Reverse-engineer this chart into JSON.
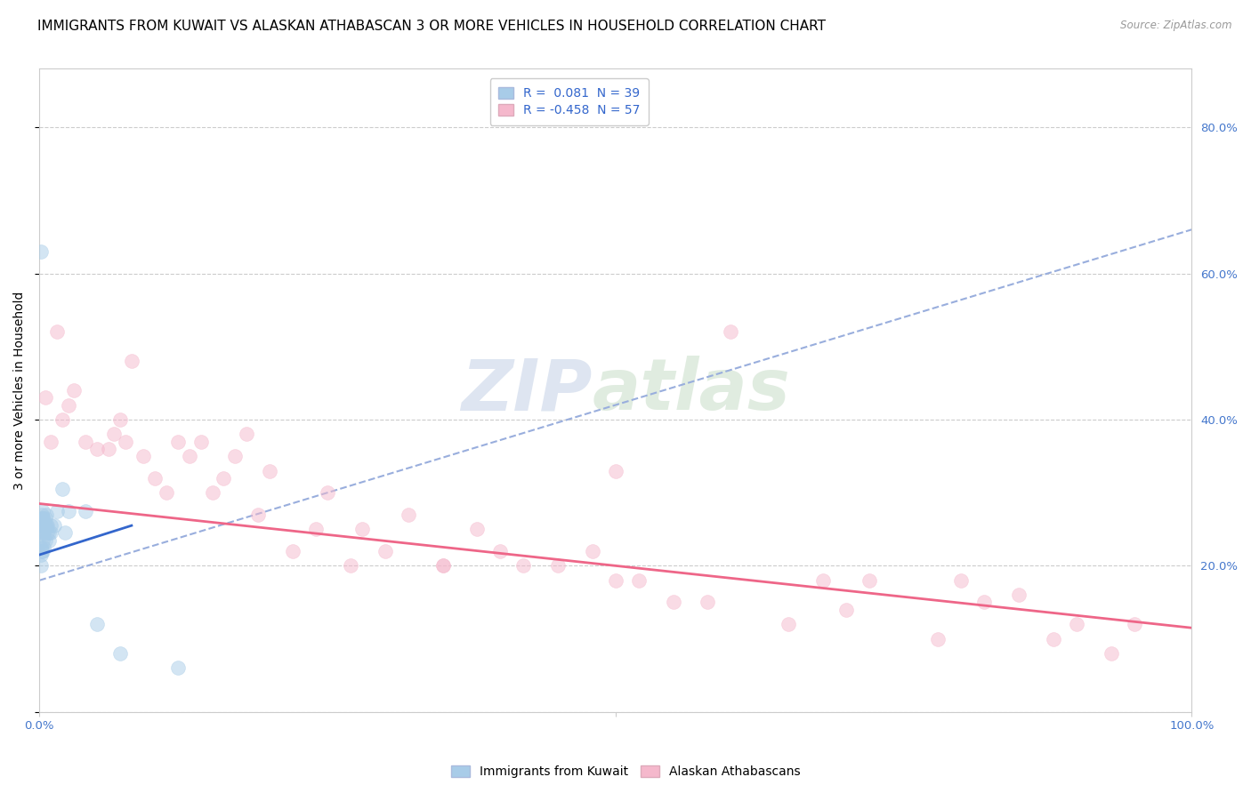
{
  "title": "IMMIGRANTS FROM KUWAIT VS ALASKAN ATHABASCAN 3 OR MORE VEHICLES IN HOUSEHOLD CORRELATION CHART",
  "source": "Source: ZipAtlas.com",
  "ylabel": "3 or more Vehicles in Household",
  "xlim": [
    0.0,
    1.0
  ],
  "ylim": [
    0.0,
    0.88
  ],
  "x_ticks": [
    0.0,
    0.5,
    1.0
  ],
  "x_tick_labels": [
    "0.0%",
    "",
    "100.0%"
  ],
  "y_ticks": [
    0.0,
    0.2,
    0.4,
    0.6,
    0.8
  ],
  "y_tick_labels_right": [
    "",
    "20.0%",
    "40.0%",
    "60.0%",
    "80.0%"
  ],
  "legend_entries": [
    {
      "label": "R =  0.081  N = 39"
    },
    {
      "label": "R = -0.458  N = 57"
    }
  ],
  "watermark_zip": "ZIP",
  "watermark_atlas": "atlas",
  "blue_scatter_x": [
    0.001,
    0.001,
    0.001,
    0.001,
    0.001,
    0.002,
    0.002,
    0.002,
    0.002,
    0.003,
    0.003,
    0.003,
    0.003,
    0.003,
    0.003,
    0.004,
    0.004,
    0.004,
    0.004,
    0.005,
    0.005,
    0.005,
    0.006,
    0.006,
    0.007,
    0.007,
    0.008,
    0.008,
    0.01,
    0.01,
    0.013,
    0.015,
    0.02,
    0.022,
    0.025,
    0.04,
    0.05,
    0.07,
    0.12
  ],
  "blue_scatter_y": [
    0.63,
    0.245,
    0.225,
    0.215,
    0.2,
    0.27,
    0.265,
    0.255,
    0.22,
    0.275,
    0.265,
    0.255,
    0.245,
    0.235,
    0.22,
    0.265,
    0.255,
    0.245,
    0.225,
    0.265,
    0.255,
    0.235,
    0.27,
    0.255,
    0.255,
    0.245,
    0.245,
    0.235,
    0.255,
    0.245,
    0.255,
    0.275,
    0.305,
    0.245,
    0.275,
    0.275,
    0.12,
    0.08,
    0.06
  ],
  "pink_scatter_x": [
    0.005,
    0.01,
    0.015,
    0.02,
    0.025,
    0.03,
    0.04,
    0.05,
    0.06,
    0.065,
    0.07,
    0.075,
    0.08,
    0.09,
    0.1,
    0.11,
    0.12,
    0.13,
    0.14,
    0.15,
    0.16,
    0.17,
    0.18,
    0.19,
    0.2,
    0.22,
    0.24,
    0.25,
    0.27,
    0.28,
    0.3,
    0.32,
    0.35,
    0.38,
    0.4,
    0.42,
    0.45,
    0.48,
    0.5,
    0.52,
    0.55,
    0.58,
    0.6,
    0.65,
    0.68,
    0.7,
    0.72,
    0.78,
    0.8,
    0.82,
    0.85,
    0.88,
    0.9,
    0.93,
    0.95,
    0.5,
    0.35
  ],
  "pink_scatter_y": [
    0.43,
    0.37,
    0.52,
    0.4,
    0.42,
    0.44,
    0.37,
    0.36,
    0.36,
    0.38,
    0.4,
    0.37,
    0.48,
    0.35,
    0.32,
    0.3,
    0.37,
    0.35,
    0.37,
    0.3,
    0.32,
    0.35,
    0.38,
    0.27,
    0.33,
    0.22,
    0.25,
    0.3,
    0.2,
    0.25,
    0.22,
    0.27,
    0.2,
    0.25,
    0.22,
    0.2,
    0.2,
    0.22,
    0.33,
    0.18,
    0.15,
    0.15,
    0.52,
    0.12,
    0.18,
    0.14,
    0.18,
    0.1,
    0.18,
    0.15,
    0.16,
    0.1,
    0.12,
    0.08,
    0.12,
    0.18,
    0.2
  ],
  "blue_solid_line_x": [
    0.0,
    0.08
  ],
  "blue_solid_line_y": [
    0.215,
    0.255
  ],
  "blue_dashed_line_x": [
    0.0,
    1.0
  ],
  "blue_dashed_line_y": [
    0.18,
    0.66
  ],
  "pink_line_x": [
    0.0,
    1.0
  ],
  "pink_line_y": [
    0.285,
    0.115
  ],
  "background_color": "#ffffff",
  "scatter_alpha": 0.5,
  "scatter_size": 130,
  "grid_color": "#cccccc",
  "title_fontsize": 11,
  "axis_label_fontsize": 10,
  "tick_fontsize": 9.5,
  "legend_fontsize": 10,
  "blue_color": "#a8cce8",
  "pink_color": "#f5b8cc",
  "blue_line_color": "#3366cc",
  "pink_line_color": "#ee6688",
  "dashed_line_color": "#99aedd"
}
